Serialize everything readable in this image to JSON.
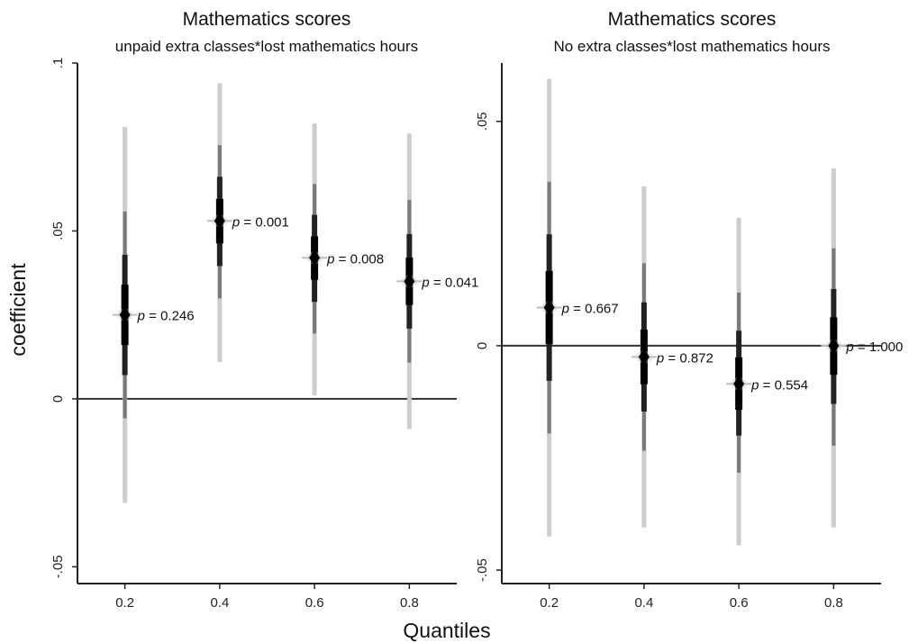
{
  "figure": {
    "ylabel": "coefficient",
    "xlabel": "Quantiles"
  },
  "chart_data": [
    {
      "type": "scatter",
      "title": "Mathematics scores",
      "subtitle": "unpaid extra classes*lost mathematics hours",
      "x": [
        0.2,
        0.4,
        0.6,
        0.8
      ],
      "y": [
        0.025,
        0.053,
        0.042,
        0.035
      ],
      "ci_low": [
        -0.031,
        0.011,
        0.001,
        -0.009
      ],
      "ci_high": [
        0.081,
        0.094,
        0.082,
        0.079
      ],
      "p_values": [
        "0.246",
        "0.001",
        "0.008",
        "0.041"
      ],
      "xlim": [
        0.1,
        0.9
      ],
      "ylim": [
        -0.055,
        0.1
      ],
      "xticks": [
        0.2,
        0.4,
        0.6,
        0.8
      ],
      "xtick_labels": [
        "0.2",
        "0.4",
        "0.6",
        "0.8"
      ],
      "yticks": [
        -0.05,
        0,
        0.05,
        0.1
      ],
      "ytick_labels": [
        "-.05",
        "0",
        ".05",
        ".1"
      ],
      "reference_line_y": 0,
      "grid": false
    },
    {
      "type": "scatter",
      "title": "Mathematics scores",
      "subtitle": "No extra classes*lost mathematics hours",
      "x": [
        0.2,
        0.4,
        0.6,
        0.8
      ],
      "y": [
        0.0085,
        -0.0025,
        -0.0085,
        0.0
      ],
      "ci_low": [
        -0.0425,
        -0.0405,
        -0.0445,
        -0.0405
      ],
      "ci_high": [
        0.0595,
        0.0355,
        0.0285,
        0.0395
      ],
      "p_values": [
        "0.667",
        "0.872",
        "0.554",
        "1.000"
      ],
      "xlim": [
        0.1,
        0.9
      ],
      "ylim": [
        -0.053,
        0.063
      ],
      "xticks": [
        0.2,
        0.4,
        0.6,
        0.8
      ],
      "xtick_labels": [
        "0.2",
        "0.4",
        "0.6",
        "0.8"
      ],
      "yticks": [
        -0.05,
        0,
        0.05
      ],
      "ytick_labels": [
        "-.05",
        "0",
        ".05"
      ],
      "reference_line_y": 0,
      "grid": false
    }
  ]
}
